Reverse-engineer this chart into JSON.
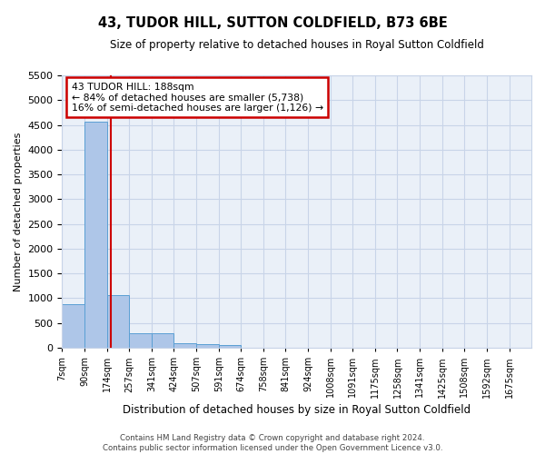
{
  "title": "43, TUDOR HILL, SUTTON COLDFIELD, B73 6BE",
  "subtitle": "Size of property relative to detached houses in Royal Sutton Coldfield",
  "xlabel": "Distribution of detached houses by size in Royal Sutton Coldfield",
  "ylabel": "Number of detached properties",
  "footer_line1": "Contains HM Land Registry data © Crown copyright and database right 2024.",
  "footer_line2": "Contains public sector information licensed under the Open Government Licence v3.0.",
  "annotation_line1": "43 TUDOR HILL: 188sqm",
  "annotation_line2": "← 84% of detached houses are smaller (5,738)",
  "annotation_line3": "16% of semi-detached houses are larger (1,126) →",
  "property_size": 188,
  "bar_labels": [
    "7sqm",
    "90sqm",
    "174sqm",
    "257sqm",
    "341sqm",
    "424sqm",
    "507sqm",
    "591sqm",
    "674sqm",
    "758sqm",
    "841sqm",
    "924sqm",
    "1008sqm",
    "1091sqm",
    "1175sqm",
    "1258sqm",
    "1341sqm",
    "1425sqm",
    "1508sqm",
    "1592sqm",
    "1675sqm"
  ],
  "bar_values": [
    880,
    4560,
    1060,
    290,
    285,
    85,
    75,
    55,
    0,
    0,
    0,
    0,
    0,
    0,
    0,
    0,
    0,
    0,
    0,
    0,
    0
  ],
  "bin_edges": [
    7,
    90,
    174,
    257,
    341,
    424,
    507,
    591,
    674,
    758,
    841,
    924,
    1008,
    1091,
    1175,
    1258,
    1341,
    1425,
    1508,
    1592,
    1675,
    1758
  ],
  "bar_color": "#aec6e8",
  "bar_edge_color": "#5a9fd4",
  "vline_color": "#cc0000",
  "vline_x": 188,
  "annotation_box_color": "#cc0000",
  "grid_color": "#c8d4e8",
  "bg_color": "#eaf0f8",
  "ylim": [
    0,
    5500
  ],
  "yticks": [
    0,
    500,
    1000,
    1500,
    2000,
    2500,
    3000,
    3500,
    4000,
    4500,
    5000,
    5500
  ]
}
